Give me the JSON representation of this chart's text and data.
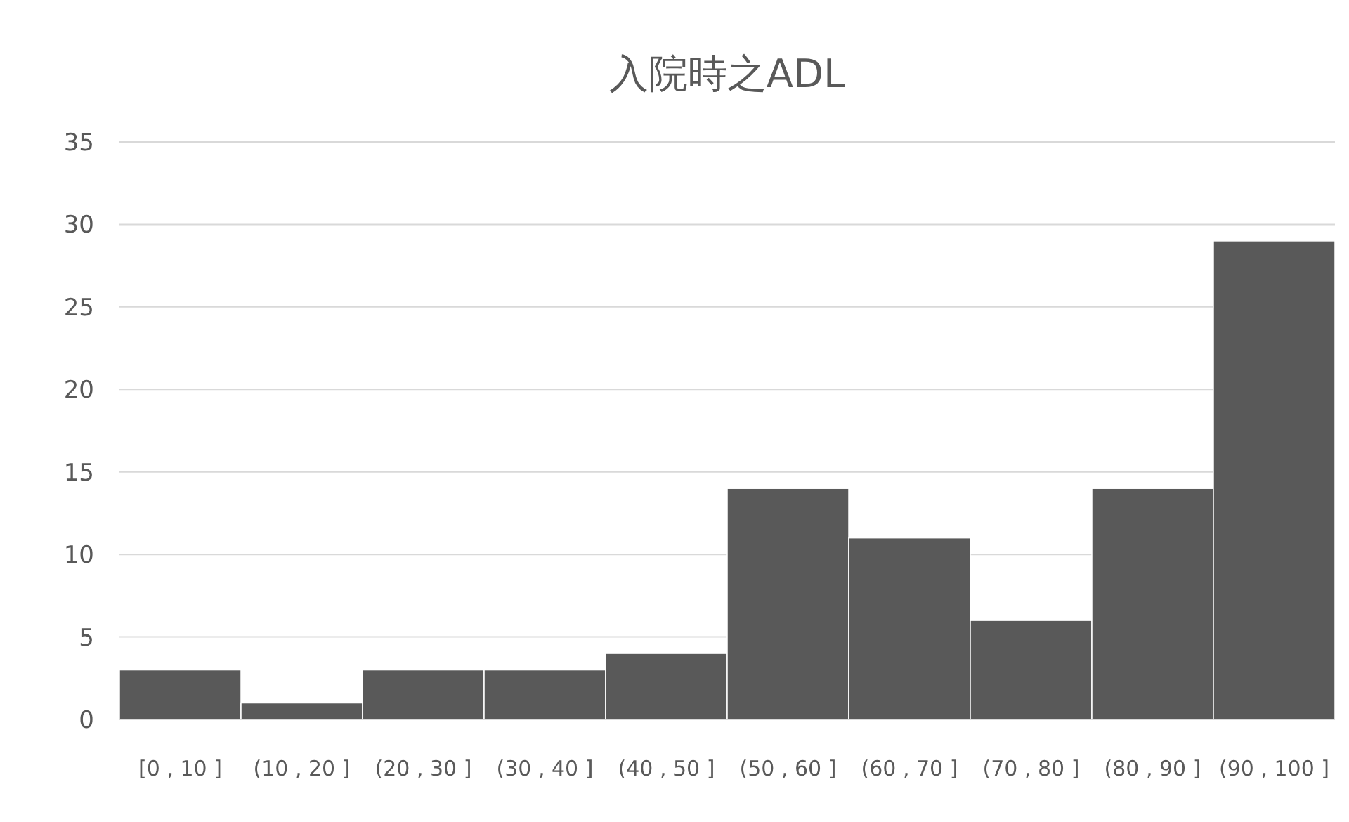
{
  "chart_data": {
    "type": "bar",
    "title": "入院時之ADL",
    "categories": [
      "[0 , 10 ]",
      "(10 , 20 ]",
      "(20 , 30 ]",
      "(30 , 40 ]",
      "(40 , 50 ]",
      "(50 , 60 ]",
      "(60 , 70 ]",
      "(70 , 80 ]",
      "(80 , 90 ]",
      "(90 , 100 ]"
    ],
    "values": [
      3,
      1,
      3,
      3,
      4,
      14,
      11,
      6,
      14,
      29
    ],
    "color": "#595959",
    "ylim": [
      0,
      35
    ],
    "yticks": [
      0,
      5,
      10,
      15,
      20,
      25,
      30,
      35
    ],
    "grid": "y"
  }
}
